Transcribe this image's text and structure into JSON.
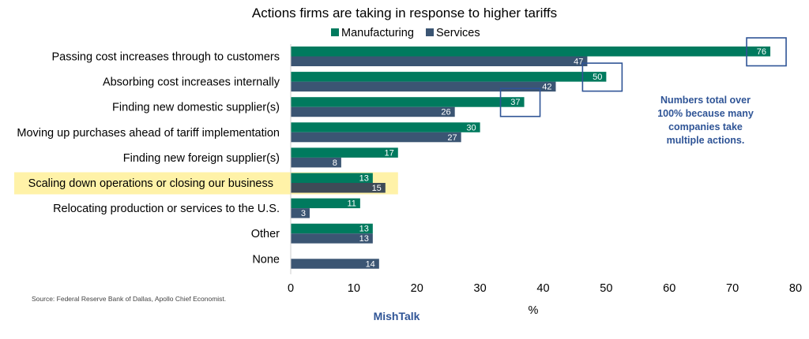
{
  "chart_data": {
    "type": "bar",
    "orientation": "horizontal",
    "title": "Actions firms are taking in response to higher tariffs",
    "xlabel": "%",
    "ylabel": "",
    "xlim": [
      0,
      80
    ],
    "xticks": [
      0,
      10,
      20,
      30,
      40,
      50,
      60,
      70,
      80
    ],
    "legend_placement": "top",
    "grid": false,
    "categories": [
      "Passing cost increases through to customers",
      "Absorbing cost increases internally",
      "Finding new domestic supplier(s)",
      "Moving up purchases ahead of tariff implementation",
      "Finding new foreign supplier(s)",
      "Scaling down operations or closing our business",
      "Relocating production or services to the U.S.",
      "Other",
      "None"
    ],
    "series": [
      {
        "name": "Manufacturing",
        "color": "#007a5e",
        "values": [
          76,
          50,
          37,
          30,
          17,
          13,
          11,
          13,
          null
        ]
      },
      {
        "name": "Services",
        "color": "#3b5573",
        "values": [
          47,
          42,
          26,
          27,
          8,
          15,
          3,
          13,
          14
        ]
      }
    ],
    "highlighted_category_index": 5,
    "highlight_color": "#fff2a8",
    "boxed_values": [
      {
        "category_index": 0,
        "series_index": 0
      },
      {
        "category_index": 1,
        "series_index": 0
      },
      {
        "category_index": 2,
        "series_index": 0
      }
    ],
    "box_color": "#2f5496",
    "annotation": "Numbers total over 100% because many companies take multiple actions.",
    "annotation_lines": [
      "Numbers total over",
      "100% because many",
      "companies take",
      "multiple actions."
    ]
  },
  "source": "Source: Federal Reserve Bank of Dallas, Apollo Chief Economist.",
  "brand": "MishTalk"
}
